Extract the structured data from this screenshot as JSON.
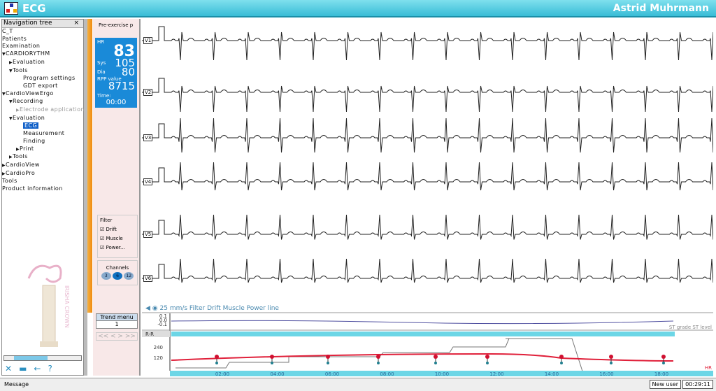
{
  "window": {
    "title": "ECG",
    "user": "Astrid Muhrmann"
  },
  "nav": {
    "title": "Navigation tree",
    "close": "×",
    "items": [
      {
        "label": "C_T",
        "level": 0
      },
      {
        "label": "Patients",
        "level": 0
      },
      {
        "label": "Examination",
        "level": 0
      },
      {
        "label": "CARDIORYTHM",
        "level": 0,
        "icon": "▼"
      },
      {
        "label": "Evaluation",
        "level": 1,
        "icon": "▶"
      },
      {
        "label": "Tools",
        "level": 1,
        "icon": "▼"
      },
      {
        "label": "Program settings",
        "level": 3
      },
      {
        "label": "GDT export",
        "level": 3
      },
      {
        "label": "CardioViewErgo",
        "level": 0,
        "icon": "▼"
      },
      {
        "label": "Recording",
        "level": 1,
        "icon": "▼"
      },
      {
        "label": "Electrode application",
        "level": 2,
        "icon": "▶"
      },
      {
        "label": "Evaluation",
        "level": 1,
        "icon": "▼"
      },
      {
        "label": "ECG",
        "level": 3,
        "selected": true
      },
      {
        "label": "Measurement",
        "level": 3
      },
      {
        "label": "Finding",
        "level": 3
      },
      {
        "label": "Print",
        "level": 2,
        "icon": "▶"
      },
      {
        "label": "Tools",
        "level": 1,
        "icon": "▶"
      },
      {
        "label": "CardioView",
        "level": 0,
        "icon": "▶"
      },
      {
        "label": "CardioPro",
        "level": 0,
        "icon": "▶"
      },
      {
        "label": "Tools",
        "level": 0
      },
      {
        "label": "Product information",
        "level": 0
      }
    ]
  },
  "panel": {
    "phase": "Pre-exercise p",
    "hr_label": "HR",
    "hr": "83",
    "sys_label": "Sys",
    "sys": "105",
    "dia_label": "Dia",
    "dia": "80",
    "rpp_label": "RPP value",
    "rpp": "8715",
    "time_label": "Time:",
    "time": "00:00",
    "filter_title": "Filter",
    "filters": [
      "Drift",
      "Muscle",
      "Power..."
    ],
    "channels_title": "Channels",
    "channels": [
      "3",
      "6",
      "12"
    ],
    "channels_selected": "6",
    "trend_menu": "Trend menu",
    "trend_value": "1",
    "pager": "<< < > >>"
  },
  "ecg": {
    "leads": [
      "V1",
      "V2",
      "V3",
      "V4",
      "V5",
      "V6"
    ],
    "info": "25 mm/s  Filter Drift  Muscle  Power line"
  },
  "trend": {
    "st_ticks": [
      "0.1",
      "0.0",
      "-0.1"
    ],
    "st_legend": "ST grade ST level",
    "rr_label": "R-R",
    "y_ticks": [
      "240",
      "120"
    ],
    "hr_legend": "HR",
    "time_ticks": [
      "02:00",
      "04:00",
      "06:00",
      "08:00",
      "10:00",
      "12:00",
      "14:00",
      "16:00",
      "18:00"
    ],
    "colors": {
      "hr": "#e0203a",
      "bp": "#d01030",
      "dia": "#208090",
      "load": "#777777",
      "band": "#6cd6e6"
    }
  },
  "status": {
    "message": "Message",
    "user": "New user",
    "clock": "00:29:11"
  }
}
